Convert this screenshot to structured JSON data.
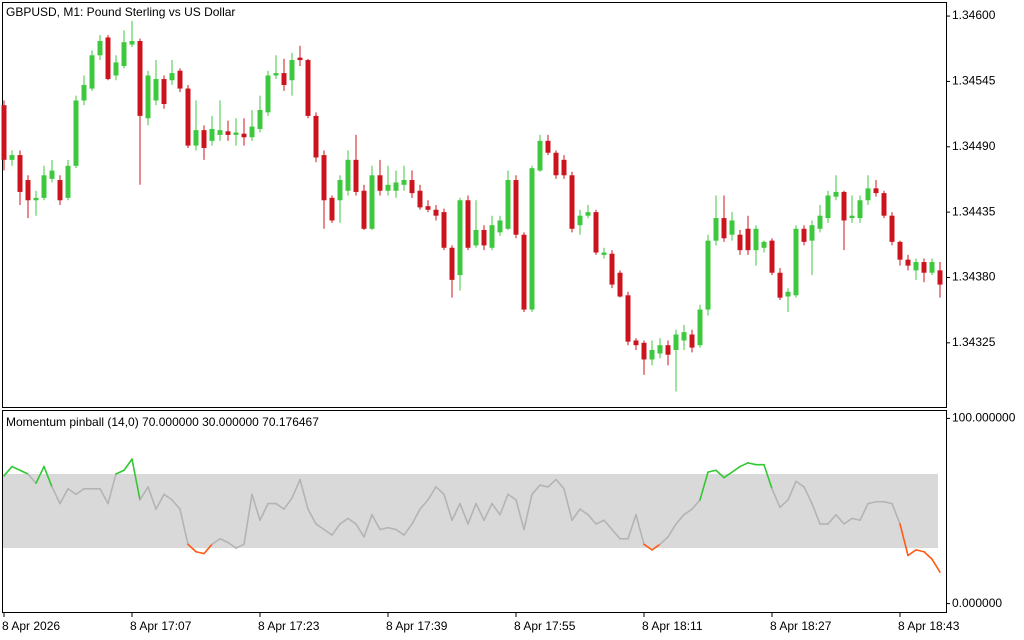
{
  "chart_data": [
    {
      "type": "candlestick",
      "title": "GBPUSD, M1:  Pound Sterling vs US Dollar",
      "up_color": "#3dc83d",
      "down_color": "#cc141e",
      "ylim": [
        1.34271,
        1.34611
      ],
      "yticks": [
        {
          "value": 1.346,
          "label": "1.34600"
        },
        1.34545,
        {
          "value": 1.3449,
          "label": "1.34490"
        },
        1.34435,
        {
          "value": 1.3438,
          "label": "1.34380"
        },
        1.34325
      ],
      "open": [
        1.34525,
        1.34479,
        1.34483,
        1.34462,
        1.34445,
        1.34447,
        1.34463,
        1.34462,
        1.34447,
        1.34474,
        1.34529,
        1.34539,
        1.34567,
        1.34582,
        1.3455,
        1.34558,
        1.34576,
        1.34579,
        1.34514,
        1.34529,
        1.34547,
        1.34546,
        1.34554,
        1.34539,
        1.34491,
        1.34504,
        1.34495,
        1.345,
        1.34503,
        1.345,
        1.34501,
        1.34498,
        1.34505,
        1.34519,
        1.3455,
        1.34552,
        1.34546,
        1.34565,
        1.34563,
        1.34516,
        1.34483,
        1.34447,
        1.34445,
        1.34453,
        1.34479,
        1.34453,
        1.34421,
        1.34466,
        1.34453,
        1.34453,
        1.34458,
        1.34462,
        1.34453,
        1.3444,
        1.34437,
        1.34435,
        1.34405,
        1.34382,
        1.34445,
        1.34407,
        1.3442,
        1.34405,
        1.34418,
        1.34421,
        1.34462,
        1.34416,
        1.34353,
        1.3447,
        1.34495,
        1.34485,
        1.34479,
        1.34466,
        1.34424,
        1.34432,
        1.34435,
        1.34399,
        1.344,
        1.34384,
        1.34365,
        1.34327,
        1.34325,
        1.34311,
        1.34316,
        1.34323,
        1.34319,
        1.34327,
        1.34332,
        1.34323,
        1.34353,
        1.34411,
        1.3443,
        1.34416,
        1.34416,
        1.34421,
        1.34403,
        1.34405,
        1.34411,
        1.34384,
        1.34364,
        1.34365,
        1.34421,
        1.34411,
        1.34421,
        1.3443,
        1.34448,
        1.34452,
        1.3443,
        1.3443,
        1.34445,
        1.34455,
        1.34451,
        1.34432,
        1.3441,
        1.34395,
        1.34386,
        1.34393,
        1.34384,
        1.34386
      ],
      "high": [
        1.34529,
        1.34487,
        1.34487,
        1.34466,
        1.34453,
        1.34474,
        1.34479,
        1.34466,
        1.34479,
        1.34533,
        1.3455,
        1.34571,
        1.34584,
        1.34584,
        1.34567,
        1.34588,
        1.34596,
        1.34581,
        1.34554,
        1.34563,
        1.3455,
        1.34563,
        1.34556,
        1.34542,
        1.34529,
        1.34508,
        1.34516,
        1.34529,
        1.34512,
        1.34514,
        1.34514,
        1.34521,
        1.34533,
        1.34554,
        1.34567,
        1.34564,
        1.34569,
        1.34575,
        1.34564,
        1.34519,
        1.34487,
        1.34449,
        1.34466,
        1.34487,
        1.345,
        1.34458,
        1.34474,
        1.34479,
        1.34474,
        1.3447,
        1.34474,
        1.3447,
        1.34458,
        1.34445,
        1.34441,
        1.34438,
        1.34407,
        1.34447,
        1.34449,
        1.34445,
        1.34424,
        1.34432,
        1.34432,
        1.3447,
        1.34466,
        1.34418,
        1.34474,
        1.345,
        1.345,
        1.34487,
        1.34483,
        1.34469,
        1.34437,
        1.34441,
        1.34437,
        1.34405,
        1.34403,
        1.34386,
        1.34368,
        1.34329,
        1.34327,
        1.34327,
        1.34329,
        1.34327,
        1.34336,
        1.3434,
        1.34336,
        1.34357,
        1.34416,
        1.34449,
        1.34449,
        1.34435,
        1.3442,
        1.34432,
        1.34424,
        1.34411,
        1.34413,
        1.34388,
        1.34371,
        1.34424,
        1.34424,
        1.34428,
        1.34441,
        1.34453,
        1.34466,
        1.34453,
        1.34449,
        1.34449,
        1.34466,
        1.34462,
        1.34453,
        1.34435,
        1.34411,
        1.34399,
        1.34396,
        1.34396,
        1.34396,
        1.34393
      ],
      "low": [
        1.3447,
        1.34474,
        1.34441,
        1.3443,
        1.34432,
        1.34445,
        1.3446,
        1.34441,
        1.34445,
        1.34472,
        1.34525,
        1.34537,
        1.34563,
        1.34546,
        1.34546,
        1.34556,
        1.34574,
        1.34458,
        1.34508,
        1.34525,
        1.34522,
        1.34542,
        1.34536,
        1.34489,
        1.34487,
        1.34479,
        1.34491,
        1.34495,
        1.34495,
        1.34491,
        1.34491,
        1.34495,
        1.34502,
        1.34516,
        1.34547,
        1.34537,
        1.34533,
        1.34558,
        1.34514,
        1.34477,
        1.34421,
        1.34426,
        1.34426,
        1.34449,
        1.34449,
        1.3442,
        1.3442,
        1.34449,
        1.34449,
        1.34447,
        1.34453,
        1.34447,
        1.34437,
        1.34435,
        1.34428,
        1.34403,
        1.34363,
        1.34369,
        1.34403,
        1.34405,
        1.34403,
        1.34403,
        1.34415,
        1.3442,
        1.34413,
        1.34351,
        1.34351,
        1.34469,
        1.34483,
        1.34463,
        1.34463,
        1.34418,
        1.34416,
        1.3443,
        1.34399,
        1.34396,
        1.34371,
        1.34363,
        1.34323,
        1.34319,
        1.34298,
        1.34306,
        1.34312,
        1.34306,
        1.34284,
        1.34319,
        1.34317,
        1.34321,
        1.34348,
        1.34407,
        1.3441,
        1.34411,
        1.34399,
        1.34399,
        1.3439,
        1.34401,
        1.34382,
        1.34361,
        1.34351,
        1.34363,
        1.34407,
        1.34382,
        1.34418,
        1.34426,
        1.34445,
        1.34403,
        1.34426,
        1.34426,
        1.34441,
        1.34448,
        1.3443,
        1.34407,
        1.3439,
        1.34386,
        1.34378,
        1.34376,
        1.34382,
        1.34363
      ],
      "close": [
        1.34479,
        1.34483,
        1.34452,
        1.34445,
        1.34447,
        1.34466,
        1.3447,
        1.34445,
        1.34474,
        1.34529,
        1.34542,
        1.34567,
        1.34579,
        1.34547,
        1.34561,
        1.34578,
        1.34579,
        1.34516,
        1.3455,
        1.34547,
        1.34526,
        1.34552,
        1.34539,
        1.34491,
        1.34504,
        1.34489,
        1.34505,
        1.34504,
        1.345,
        1.34502,
        1.34498,
        1.34507,
        1.34521,
        1.3455,
        1.34552,
        1.34542,
        1.34563,
        1.34563,
        1.34516,
        1.34481,
        1.34445,
        1.34428,
        1.34462,
        1.34479,
        1.34452,
        1.34421,
        1.34466,
        1.34453,
        1.34458,
        1.3446,
        1.34462,
        1.34451,
        1.34439,
        1.34437,
        1.34432,
        1.34405,
        1.34378,
        1.34445,
        1.34405,
        1.3442,
        1.34407,
        1.34424,
        1.34428,
        1.34462,
        1.34416,
        1.34353,
        1.34472,
        1.34495,
        1.34485,
        1.34466,
        1.34466,
        1.34421,
        1.34432,
        1.34435,
        1.34401,
        1.34401,
        1.34374,
        1.34364,
        1.34326,
        1.34323,
        1.34311,
        1.34319,
        1.34323,
        1.34315,
        1.34332,
        1.34334,
        1.34321,
        1.34353,
        1.34411,
        1.3443,
        1.34413,
        1.34428,
        1.34403,
        1.34403,
        1.34421,
        1.3441,
        1.34384,
        1.34363,
        1.34368,
        1.34421,
        1.3441,
        1.34424,
        1.34432,
        1.34449,
        1.34452,
        1.34428,
        1.34432,
        1.34445,
        1.34455,
        1.34451,
        1.34432,
        1.3441,
        1.34395,
        1.3439,
        1.34393,
        1.34384,
        1.34393,
        1.34374
      ]
    },
    {
      "type": "line",
      "title": "Momentum pinball (14,0) 70.000000 30.000000 70.176467",
      "color": "#b4b4b4",
      "upper_color": "#32c832",
      "lower_color": "#ff5a14",
      "band_color": "#d9d9d9",
      "levels": [
        30,
        70
      ],
      "ylim": [
        -4,
        104
      ],
      "yticks": [
        {
          "value": 100,
          "label": "100.000000"
        },
        {
          "value": 0,
          "label": "0.000000"
        }
      ],
      "categories": [
        "8 Apr 2026",
        null,
        null,
        null,
        null,
        null,
        null,
        null,
        null,
        null,
        null,
        null,
        null,
        null,
        null,
        null,
        "8 Apr 17:07",
        null,
        null,
        null,
        null,
        null,
        null,
        null,
        null,
        null,
        null,
        null,
        null,
        null,
        null,
        null,
        "8 Apr 17:23",
        null,
        null,
        null,
        null,
        null,
        null,
        null,
        null,
        null,
        null,
        null,
        null,
        null,
        null,
        null,
        "8 Apr 17:39",
        null,
        null,
        null,
        null,
        null,
        null,
        null,
        null,
        null,
        null,
        null,
        null,
        null,
        null,
        null,
        "8 Apr 17:55",
        null,
        null,
        null,
        null,
        null,
        null,
        null,
        null,
        null,
        null,
        null,
        null,
        null,
        null,
        null,
        "8 Apr 18:11",
        null,
        null,
        null,
        null,
        null,
        null,
        null,
        null,
        null,
        null,
        null,
        null,
        null,
        null,
        null,
        "8 Apr 18:27",
        null,
        null,
        null,
        null,
        null,
        null,
        null,
        null,
        null,
        null,
        null,
        null,
        null,
        null,
        null,
        "8 Apr 18:43",
        null,
        null,
        null,
        null,
        null
      ],
      "values": [
        69,
        74,
        72,
        70,
        65,
        74,
        63,
        54,
        62,
        59,
        62,
        62,
        62,
        54,
        70,
        72,
        78,
        56,
        63,
        51,
        59,
        56,
        51,
        32,
        28,
        27,
        32,
        35,
        33,
        30,
        32,
        59,
        45,
        54,
        54,
        51,
        57,
        67,
        51,
        43,
        40,
        37,
        43,
        46,
        43,
        36,
        48,
        40,
        41,
        40,
        37,
        43,
        51,
        56,
        63,
        59,
        45,
        54,
        43,
        54,
        45,
        54,
        48,
        59,
        56,
        40,
        59,
        64,
        63,
        67,
        62,
        45,
        51,
        48,
        43,
        45,
        40,
        35,
        35,
        48,
        32,
        29,
        32,
        36,
        43,
        48,
        51,
        56,
        71,
        72,
        68,
        71,
        74,
        76,
        75,
        75,
        62,
        52,
        56,
        66,
        63,
        54,
        43,
        43,
        48,
        43,
        46,
        45,
        54,
        55,
        55,
        54,
        43,
        26,
        29,
        28,
        24,
        17
      ]
    }
  ]
}
